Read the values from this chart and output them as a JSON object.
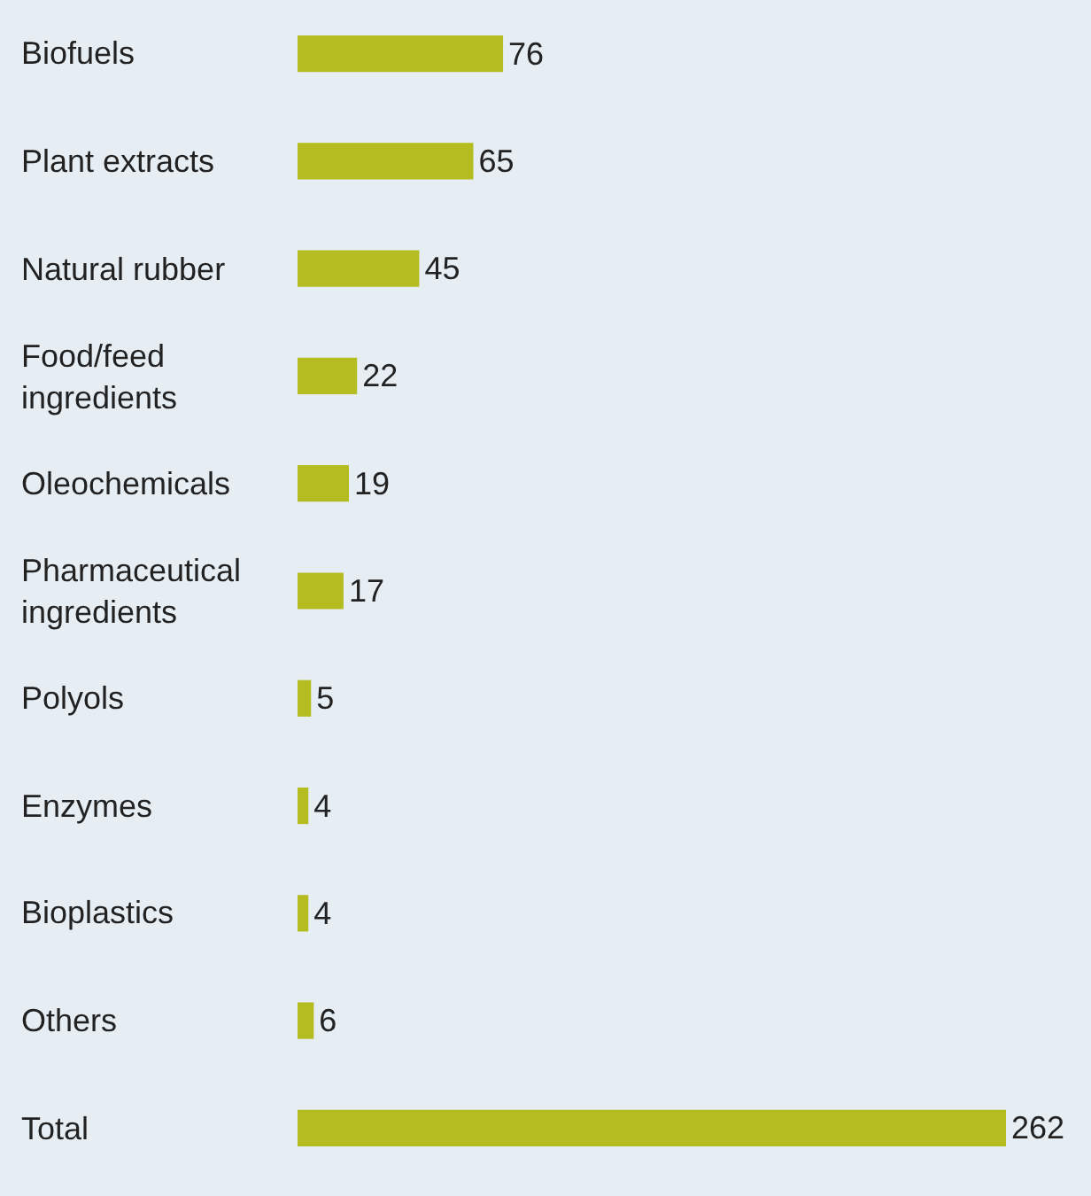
{
  "chart_data": {
    "type": "bar",
    "orientation": "horizontal",
    "categories": [
      "Biofuels",
      "Plant extracts",
      "Natural rubber",
      "Food/feed ingredients",
      "Oleochemicals",
      "Pharmaceutical ingredients",
      "Polyols",
      "Enzymes",
      "Bioplastics",
      "Others",
      "Total"
    ],
    "values": [
      76,
      65,
      45,
      22,
      19,
      17,
      5,
      4,
      4,
      6,
      262
    ],
    "color": "#b4bc1f",
    "data_labels": true
  }
}
